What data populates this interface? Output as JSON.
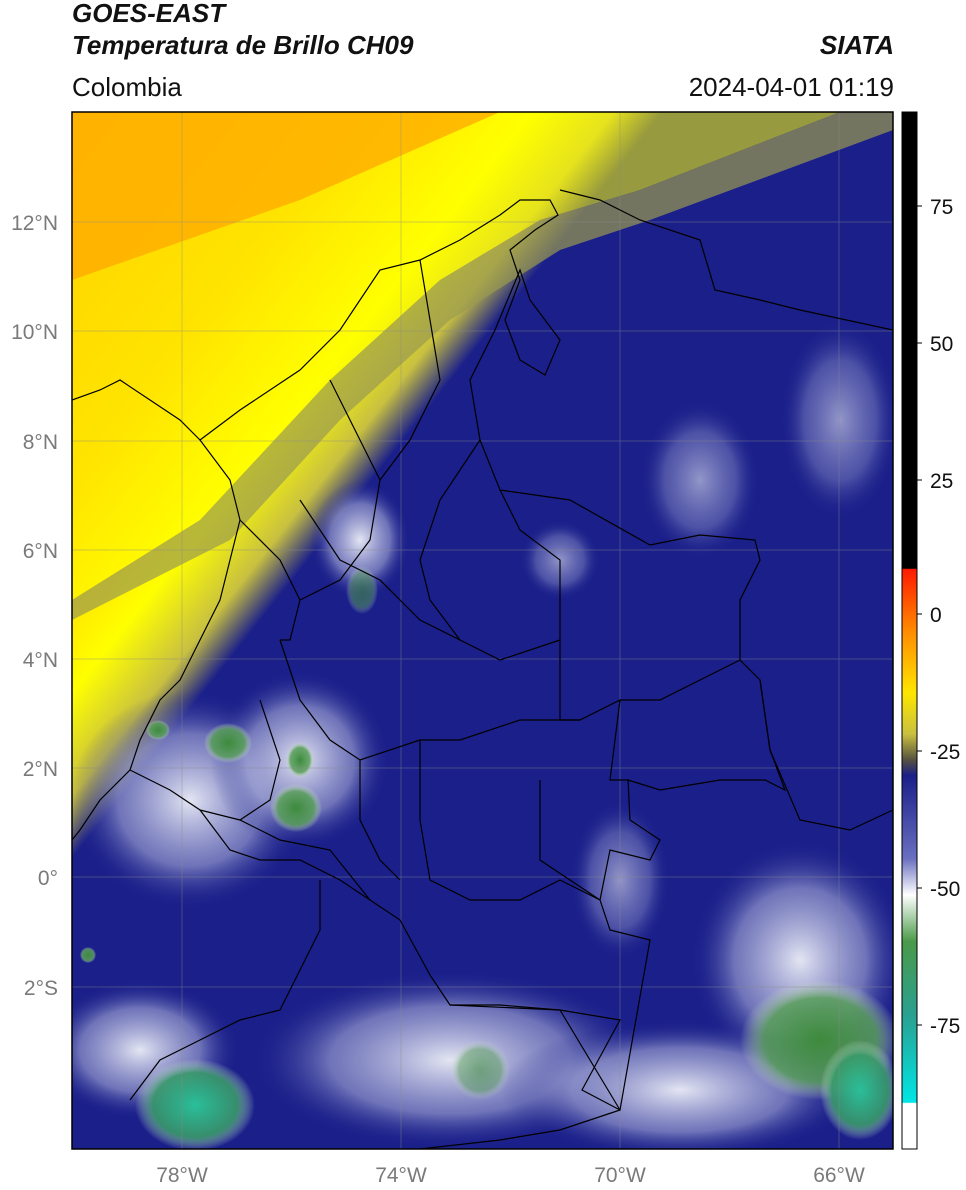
{
  "header": {
    "satellite": "GOES-EAST",
    "product": "Temperatura de Brillo CH09",
    "organization": "SIATA",
    "region": "Colombia",
    "timestamp": "2024-04-01 01:19"
  },
  "map": {
    "lat_labels": [
      "12°N",
      "10°N",
      "8°N",
      "6°N",
      "4°N",
      "2°N",
      "0°",
      "2°S"
    ],
    "lon_labels": [
      "78°W",
      "74°W",
      "70°W",
      "66°W"
    ],
    "colors": {
      "hot_orange": "#ff9a00",
      "warm_yellow": "#ffff00",
      "deep_blue": "#1a1f8a",
      "light_cloud": "#e6e8f4",
      "green_cloud": "#3d8a3d",
      "teal_cloud": "#2abf9a",
      "border_line": "#000000"
    }
  },
  "colorbar": {
    "ticks": [
      "75",
      "50",
      "25",
      "0",
      "-25",
      "-50",
      "-75"
    ]
  }
}
